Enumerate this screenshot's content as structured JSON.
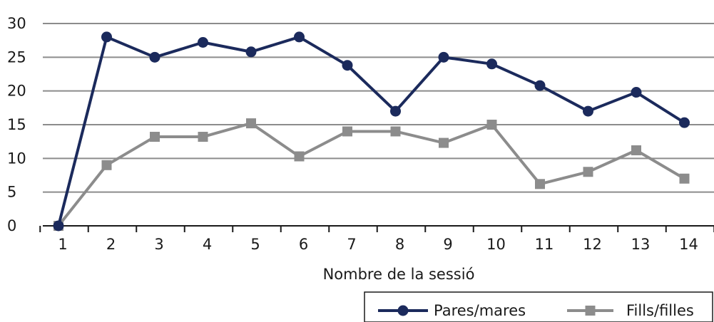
{
  "chart_data": {
    "type": "line",
    "x": [
      1,
      2,
      3,
      4,
      5,
      6,
      7,
      8,
      9,
      10,
      11,
      12,
      13,
      14
    ],
    "categories": [
      "1",
      "2",
      "3",
      "4",
      "5",
      "6",
      "7",
      "8",
      "9",
      "10",
      "11",
      "12",
      "13",
      "14"
    ],
    "xlabel": "Nombre de la sessió",
    "ylabel": "",
    "title": "",
    "ylim": [
      0,
      30
    ],
    "yticks": [
      0,
      5,
      10,
      15,
      20,
      25,
      30
    ],
    "grid": true,
    "legend_position": "bottom-right",
    "series": [
      {
        "name": "Pares/mares",
        "color": "#1b2a5c",
        "marker": "circle",
        "values": [
          0,
          28,
          25,
          27.2,
          25.8,
          28,
          23.8,
          17,
          25,
          24,
          20.8,
          17,
          19.8,
          15.3
        ]
      },
      {
        "name": "Fills/filles",
        "color": "#8c8c8c",
        "marker": "square",
        "values": [
          0,
          9,
          13.2,
          13.2,
          15.2,
          10.3,
          14,
          14,
          12.3,
          15,
          6.2,
          8,
          11.2,
          7
        ]
      }
    ]
  }
}
